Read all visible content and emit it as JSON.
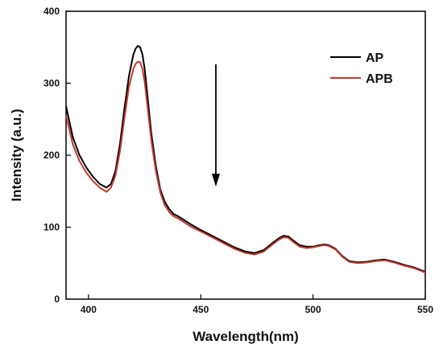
{
  "chart_data": {
    "type": "line",
    "title": "",
    "xlabel": "Wavelength(nm)",
    "ylabel": "Intensity (a.u.)",
    "xlim": [
      390,
      550
    ],
    "ylim": [
      0,
      400
    ],
    "x_ticks": [
      400,
      450,
      500,
      550
    ],
    "y_ticks": [
      0,
      100,
      200,
      300,
      400
    ],
    "grid": false,
    "legend_position": "top-right",
    "annotation": "downward arrow indicating decrease from AP to APB",
    "series": [
      {
        "name": "AP",
        "color": "#000000",
        "x": [
          390,
          393,
          396,
          399,
          402,
          405,
          408,
          410,
          412,
          414,
          416,
          418,
          420,
          421,
          422,
          423,
          424,
          425,
          426,
          428,
          430,
          432,
          434,
          436,
          438,
          440,
          443,
          446,
          450,
          455,
          460,
          465,
          470,
          474,
          478,
          482,
          485,
          487,
          489,
          491,
          494,
          497,
          500,
          503,
          505,
          507,
          510,
          513,
          516,
          520,
          524,
          528,
          532,
          536,
          540,
          545,
          550
        ],
        "y": [
          268,
          225,
          200,
          183,
          170,
          160,
          155,
          160,
          178,
          215,
          265,
          310,
          340,
          348,
          352,
          350,
          340,
          320,
          290,
          230,
          185,
          152,
          135,
          125,
          118,
          115,
          109,
          103,
          96,
          88,
          80,
          72,
          66,
          64,
          68,
          78,
          85,
          88,
          87,
          82,
          75,
          73,
          73,
          75,
          76,
          75,
          70,
          60,
          53,
          51,
          52,
          54,
          55,
          52,
          48,
          44,
          38
        ]
      },
      {
        "name": "APB",
        "color": "#c0392b",
        "x": [
          390,
          393,
          396,
          399,
          402,
          405,
          408,
          410,
          412,
          414,
          416,
          418,
          420,
          421,
          422,
          423,
          424,
          425,
          426,
          428,
          430,
          432,
          434,
          436,
          438,
          440,
          443,
          446,
          450,
          455,
          460,
          465,
          470,
          474,
          478,
          482,
          485,
          487,
          489,
          491,
          494,
          497,
          500,
          503,
          505,
          507,
          510,
          513,
          516,
          520,
          524,
          528,
          532,
          536,
          540,
          545,
          550
        ],
        "y": [
          255,
          215,
          192,
          176,
          164,
          155,
          149,
          155,
          172,
          205,
          252,
          295,
          320,
          327,
          330,
          329,
          320,
          302,
          275,
          220,
          178,
          148,
          130,
          121,
          115,
          112,
          106,
          100,
          94,
          86,
          78,
          70,
          64,
          62,
          66,
          76,
          83,
          86,
          85,
          80,
          73,
          71,
          72,
          74,
          75,
          74,
          69,
          59,
          52,
          50,
          51,
          53,
          54,
          51,
          47,
          43,
          37
        ]
      }
    ]
  }
}
